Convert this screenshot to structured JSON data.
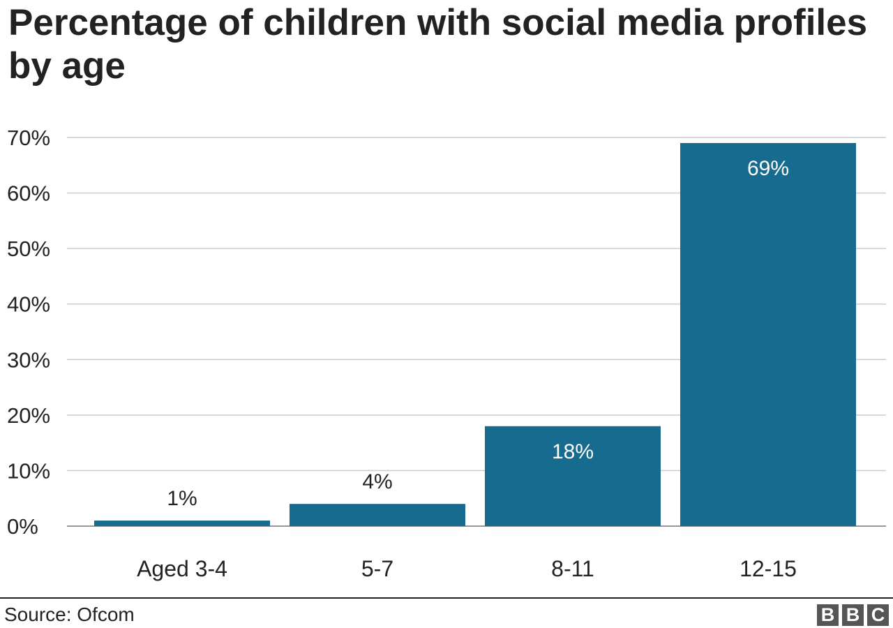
{
  "header": {
    "title": "Percentage of children with social media profiles by age"
  },
  "chart_data": {
    "type": "bar",
    "title": "Percentage of children with social media profiles by age",
    "xlabel": "",
    "ylabel": "",
    "categories": [
      "Aged 3-4",
      "5-7",
      "8-11",
      "12-15"
    ],
    "values": [
      1,
      4,
      18,
      69
    ],
    "value_labels": [
      "1%",
      "4%",
      "18%",
      "69%"
    ],
    "ylim": [
      0,
      70
    ],
    "yticks": [
      0,
      10,
      20,
      30,
      40,
      50,
      60,
      70
    ],
    "ytick_labels": [
      "0%",
      "10%",
      "20%",
      "30%",
      "40%",
      "50%",
      "60%",
      "70%"
    ],
    "grid": true,
    "legend": "none",
    "bar_color": "#176b8f",
    "grid_color": "#cccccc",
    "axis_color": "#999999",
    "inside_label_color": "#ffffff",
    "outside_label_color": "#222222"
  },
  "footer": {
    "source": "Source: Ofcom",
    "logo_letters": [
      "B",
      "B",
      "C"
    ]
  }
}
